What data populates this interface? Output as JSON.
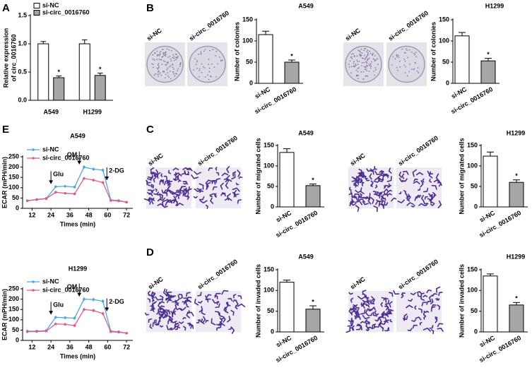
{
  "panels": [
    "A",
    "B",
    "C",
    "D",
    "E"
  ],
  "photo_labels": [
    [
      "si-NC",
      "si-circ_0016760"
    ],
    [
      "si-NC",
      "si-circ_0016760"
    ],
    [
      "si-NC",
      "si-circ_0016760"
    ],
    [
      "si-NC",
      "si-circ_0016760"
    ],
    [
      "si-NC",
      "si-circ_0016760"
    ],
    [
      "si-NC",
      "si-circ_0016760"
    ]
  ],
  "chart_data": [
    {
      "type": "bar",
      "ylabel": [
        "Relative expression",
        "of circ_0016760"
      ],
      "categories": [
        "A549",
        "H1299"
      ],
      "series": [
        {
          "name": "si-NC",
          "color": "#ffffff",
          "values": [
            1.0,
            1.0
          ],
          "errors": [
            0.04,
            0.07
          ]
        },
        {
          "name": "si-circ_0016760",
          "color": "#a6a6a6",
          "values": [
            0.4,
            0.44
          ],
          "errors": [
            0.03,
            0.04
          ],
          "markers": [
            "*",
            "*"
          ]
        }
      ],
      "ylim": [
        0,
        1.5
      ],
      "yticks": [
        {
          "value": 0,
          "label": "0.0"
        },
        0.5,
        {
          "value": 1,
          "label": "1.0"
        },
        1.5
      ]
    },
    {
      "type": "bar",
      "title": "A549",
      "ylabel": "Number of colonies",
      "categories": [
        "si-NC",
        "si-circ_0016760"
      ],
      "colors": [
        "#ffffff",
        "#a6a6a6"
      ],
      "values": [
        115,
        50
      ],
      "errors": [
        8,
        5
      ],
      "markers": [
        null,
        "*"
      ],
      "ylim": [
        0,
        150
      ],
      "yticks": [
        0,
        50,
        100,
        150
      ]
    },
    {
      "type": "bar",
      "title": "H1299",
      "ylabel": "Number of colonies",
      "categories": [
        "si-NC",
        "si-circ_0016760"
      ],
      "colors": [
        "#ffffff",
        "#a6a6a6"
      ],
      "values": [
        112,
        53
      ],
      "errors": [
        8,
        6
      ],
      "markers": [
        null,
        "*"
      ],
      "ylim": [
        0,
        150
      ],
      "yticks": [
        0,
        50,
        100,
        150
      ]
    },
    {
      "type": "bar",
      "title": "A549",
      "ylabel": "Number of migrated cells",
      "categories": [
        "si-NC",
        "si-circ_0016760"
      ],
      "colors": [
        "#ffffff",
        "#a6a6a6"
      ],
      "values": [
        133,
        52
      ],
      "errors": [
        9,
        4
      ],
      "markers": [
        null,
        "*"
      ],
      "ylim": [
        0,
        150
      ],
      "yticks": [
        0,
        50,
        100,
        150
      ]
    },
    {
      "type": "bar",
      "title": "H1299",
      "ylabel": "Number of migrated cells",
      "categories": [
        "si-NC",
        "si-circ_0016760"
      ],
      "colors": [
        "#ffffff",
        "#a6a6a6"
      ],
      "values": [
        124,
        60
      ],
      "errors": [
        10,
        6
      ],
      "markers": [
        null,
        "*"
      ],
      "ylim": [
        0,
        150
      ],
      "yticks": [
        0,
        50,
        100,
        150
      ]
    },
    {
      "type": "bar",
      "title": "A549",
      "ylabel": "Number of invaded cells",
      "categories": [
        "si-NC",
        "si-circ_0016760"
      ],
      "colors": [
        "#ffffff",
        "#a6a6a6"
      ],
      "values": [
        120,
        55
      ],
      "errors": [
        5,
        8
      ],
      "markers": [
        null,
        "*"
      ],
      "ylim": [
        0,
        150
      ],
      "yticks": [
        0,
        50,
        100,
        150
      ]
    },
    {
      "type": "bar",
      "title": "H1299",
      "ylabel": "Number of invaded cells",
      "categories": [
        "si-NC",
        "si-circ_0016760"
      ],
      "colors": [
        "#ffffff",
        "#a6a6a6"
      ],
      "values": [
        135,
        65
      ],
      "errors": [
        5,
        6
      ],
      "markers": [
        null,
        "*"
      ],
      "ylim": [
        0,
        150
      ],
      "yticks": [
        0,
        50,
        100,
        150
      ]
    },
    {
      "type": "line",
      "title": "A549",
      "ylabel": "ECAR (mPH/min)",
      "xlabel": "Times (min)",
      "x": [
        9,
        15,
        21,
        27,
        33,
        39,
        45,
        51,
        57,
        62,
        67,
        72
      ],
      "series": [
        {
          "name": "si-NC",
          "color": "#4da6e8",
          "values": [
            37,
            43,
            48,
            105,
            107,
            103,
            200,
            190,
            185,
            40,
            38,
            30
          ],
          "errors": [
            3,
            3,
            3,
            6,
            6,
            6,
            9,
            8,
            8,
            3,
            3,
            3
          ]
        },
        {
          "name": "si-circ_0016760",
          "color": "#e8578a",
          "values": [
            37,
            42,
            47,
            78,
            73,
            70,
            145,
            137,
            125,
            38,
            36,
            30
          ],
          "errors": [
            3,
            3,
            3,
            5,
            5,
            5,
            7,
            7,
            7,
            3,
            3,
            3
          ]
        }
      ],
      "annotations": [
        "Glu",
        "OM",
        "2-DG"
      ],
      "xlim": [
        6,
        76
      ],
      "xticks": [
        12,
        24,
        36,
        48,
        60,
        72
      ],
      "ylim": [
        0,
        250
      ],
      "yticks": [
        0,
        50,
        100,
        150,
        200,
        250
      ]
    },
    {
      "type": "line",
      "title": "H1299",
      "ylabel": "ECAR (mPH/min)",
      "xlabel": "Times (min)",
      "x": [
        9,
        15,
        21,
        27,
        33,
        39,
        45,
        51,
        57,
        62,
        67,
        72
      ],
      "series": [
        {
          "name": "si-NC",
          "color": "#4da6e8",
          "values": [
            45,
            45,
            48,
            112,
            110,
            108,
            200,
            198,
            190,
            45,
            42,
            35
          ],
          "errors": [
            3,
            3,
            3,
            7,
            7,
            7,
            9,
            9,
            9,
            3,
            3,
            3
          ]
        },
        {
          "name": "si-circ_0016760",
          "color": "#e8578a",
          "values": [
            42,
            43,
            45,
            80,
            78,
            72,
            150,
            145,
            130,
            42,
            40,
            35
          ],
          "errors": [
            3,
            3,
            3,
            5,
            5,
            5,
            8,
            8,
            8,
            3,
            3,
            3
          ]
        }
      ],
      "annotations": [
        "Glu",
        "OM",
        "2-DG"
      ],
      "xlim": [
        6,
        76
      ],
      "xticks": [
        12,
        24,
        36,
        48,
        60,
        72
      ],
      "ylim": [
        0,
        250
      ],
      "yticks": [
        0,
        50,
        100,
        150,
        200,
        250
      ]
    }
  ]
}
